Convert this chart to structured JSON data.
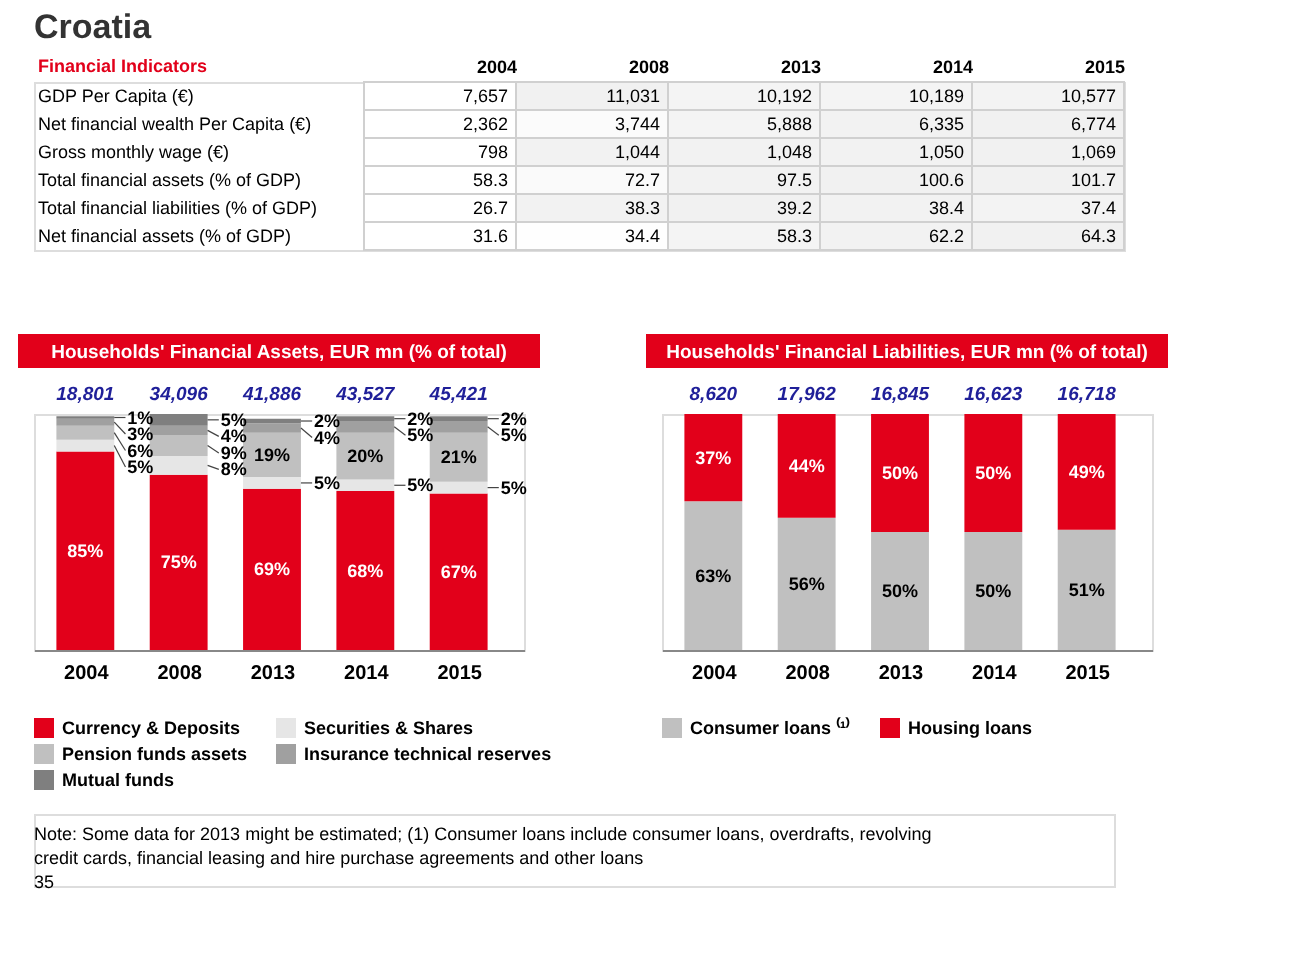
{
  "chart_data": [
    {
      "type": "heatmap",
      "title": "Croatia",
      "ylabel": "Financial Indicators",
      "categories": [
        "2004",
        "2008",
        "2013",
        "2014",
        "2015"
      ],
      "y_categories": [
        "GDP Per Capita (€)",
        "Net financial wealth Per Capita (€)",
        "Gross monthly wage (€)",
        "Total financial assets (% of GDP)",
        "Total financial liabilities (% of GDP)",
        "Net financial assets (% of GDP)"
      ],
      "cells": [
        [
          7657,
          11031,
          10192,
          10189,
          10577
        ],
        [
          2362,
          3744,
          5888,
          6335,
          6774
        ],
        [
          798,
          1044,
          1048,
          1050,
          1069
        ],
        [
          58.3,
          72.7,
          97.5,
          100.6,
          101.7
        ],
        [
          26.7,
          38.3,
          39.2,
          38.4,
          37.4
        ],
        [
          31.6,
          34.4,
          58.3,
          62.2,
          64.3
        ]
      ],
      "cell_labels": [
        [
          "7,657",
          "11,031",
          "10,192",
          "10,189",
          "10,577"
        ],
        [
          "2,362",
          "3,744",
          "5,888",
          "6,335",
          "6,774"
        ],
        [
          "798",
          "1,044",
          "1,048",
          "1,050",
          "1,069"
        ],
        [
          "58.3",
          "72.7",
          "97.5",
          "100.6",
          "101.7"
        ],
        [
          "26.7",
          "38.3",
          "39.2",
          "38.4",
          "37.4"
        ],
        [
          "31.6",
          "34.4",
          "58.3",
          "62.2",
          "64.3"
        ]
      ],
      "annotations": [
        "Note: Some data for 2013 might be estimated; (1) Consumer loans include consumer loans, overdrafts, revolving credit cards, financial leasing and hire purchase agreements and other loans",
        "35"
      ]
    },
    {
      "type": "bar",
      "stacked": true,
      "title": "Households' Financial Assets, EUR mn (% of total)",
      "categories": [
        "2004",
        "2008",
        "2013",
        "2014",
        "2015"
      ],
      "legend": "bottom",
      "grid": false,
      "annotations": [
        "18,801",
        "34,096",
        "41,886",
        "43,527",
        "45,421"
      ],
      "series": [
        {
          "name": "Currency & Deposits",
          "color": "#e2001a",
          "values": [
            85,
            75,
            69,
            68,
            67
          ],
          "value_labels": [
            "85%",
            "75%",
            "69%",
            "68%",
            "67%"
          ]
        },
        {
          "name": "Securities & Shares",
          "color": "#e6e6e6",
          "values": [
            5,
            8,
            5,
            5,
            5
          ],
          "value_labels": [
            "5%",
            "8%",
            "5%",
            "5%",
            "5%"
          ]
        },
        {
          "name": "Pension funds assets",
          "color": "#c0c0c0",
          "values": [
            6,
            9,
            19,
            20,
            21
          ],
          "value_labels": [
            "6%",
            "9%",
            "19%",
            "20%",
            "21%"
          ]
        },
        {
          "name": "Insurance technical reserves",
          "color": "#a0a0a0",
          "values": [
            3,
            4,
            4,
            5,
            5
          ],
          "value_labels": [
            "3%",
            "4%",
            "4%",
            "5%",
            "5%"
          ]
        },
        {
          "name": "Mutual funds",
          "color": "#7f7f7f",
          "values": [
            1,
            5,
            2,
            2,
            2
          ],
          "value_labels": [
            "1%",
            "5%",
            "2%",
            "2%",
            "2%"
          ]
        }
      ]
    },
    {
      "type": "bar",
      "stacked": true,
      "title": "Households' Financial Liabilities, EUR mn (% of total)",
      "categories": [
        "2004",
        "2008",
        "2013",
        "2014",
        "2015"
      ],
      "legend": "bottom",
      "grid": false,
      "annotations": [
        "8,620",
        "17,962",
        "16,845",
        "16,623",
        "16,718"
      ],
      "series": [
        {
          "name": "Consumer loans ⁽¹⁾",
          "color": "#c0c0c0",
          "values": [
            63,
            56,
            50,
            50,
            51
          ],
          "value_labels": [
            "63%",
            "56%",
            "50%",
            "50%",
            "51%"
          ]
        },
        {
          "name": "Housing loans",
          "color": "#e2001a",
          "values": [
            37,
            44,
            50,
            50,
            49
          ],
          "value_labels": [
            "37%",
            "44%",
            "50%",
            "50%",
            "49%"
          ]
        }
      ]
    }
  ]
}
